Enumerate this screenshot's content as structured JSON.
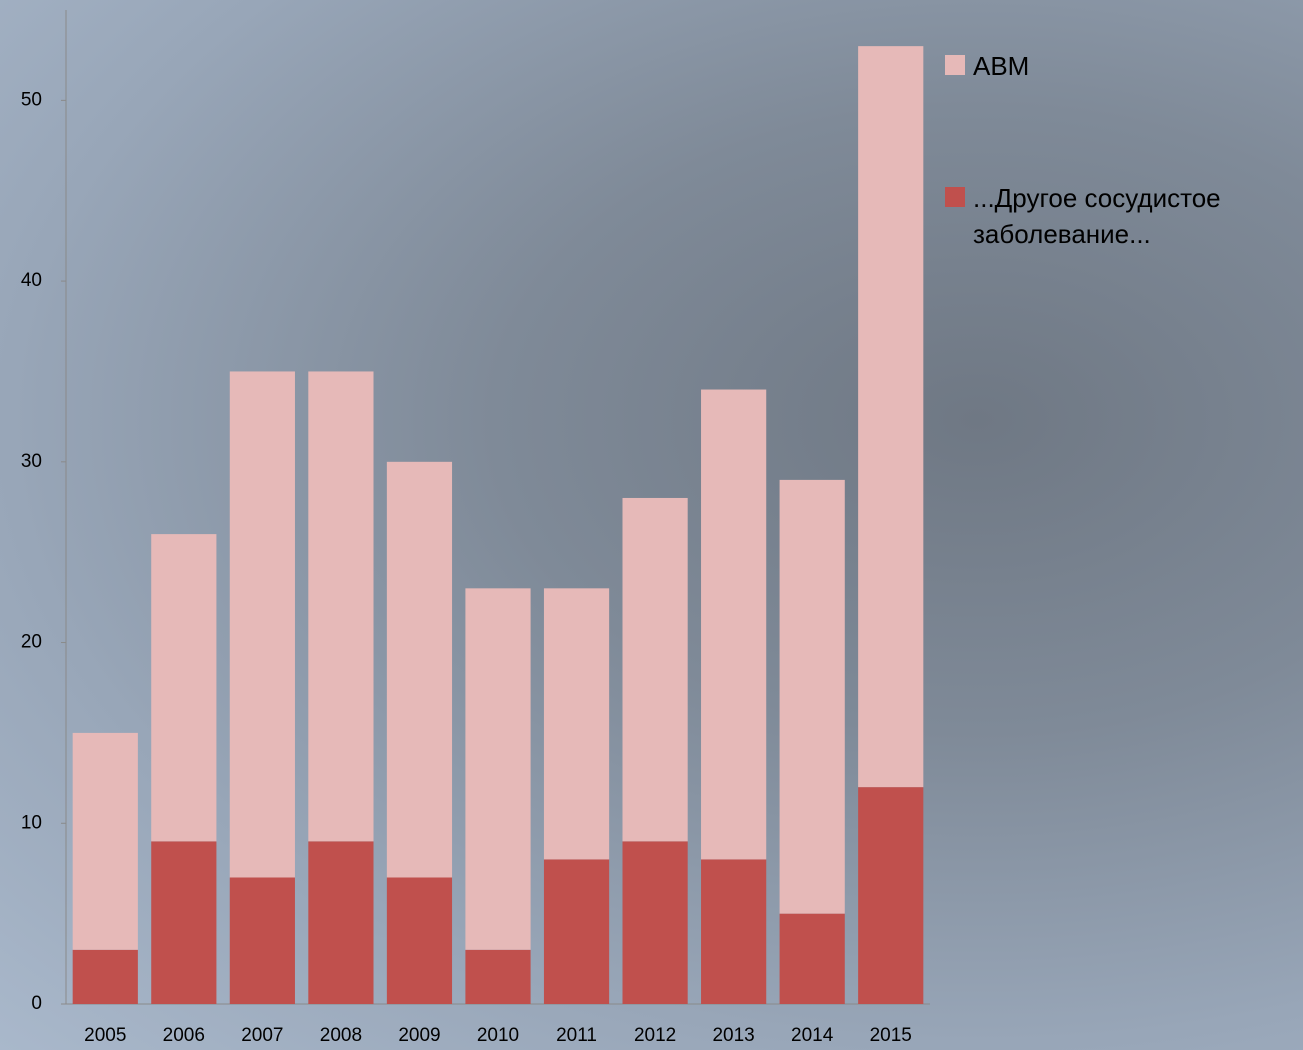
{
  "chart_data": {
    "type": "stacked_bar",
    "categories": [
      "2005",
      "2006",
      "2007",
      "2008",
      "2009",
      "2010",
      "2011",
      "2012",
      "2013",
      "2014",
      "2015"
    ],
    "series": [
      {
        "name": "...Другое сосудистое заболевание...",
        "color": "#c0504d",
        "values": [
          3,
          9,
          7,
          9,
          7,
          3,
          8,
          9,
          8,
          5,
          12
        ]
      },
      {
        "name": "АВМ",
        "color": "#e6b9b8",
        "values": [
          12,
          17,
          28,
          26,
          23,
          20,
          15,
          19,
          26,
          24,
          41
        ]
      }
    ],
    "ylim": [
      0,
      55
    ],
    "yticks": [
      0,
      10,
      20,
      30,
      40,
      50
    ],
    "grid": false,
    "legend": "right"
  }
}
